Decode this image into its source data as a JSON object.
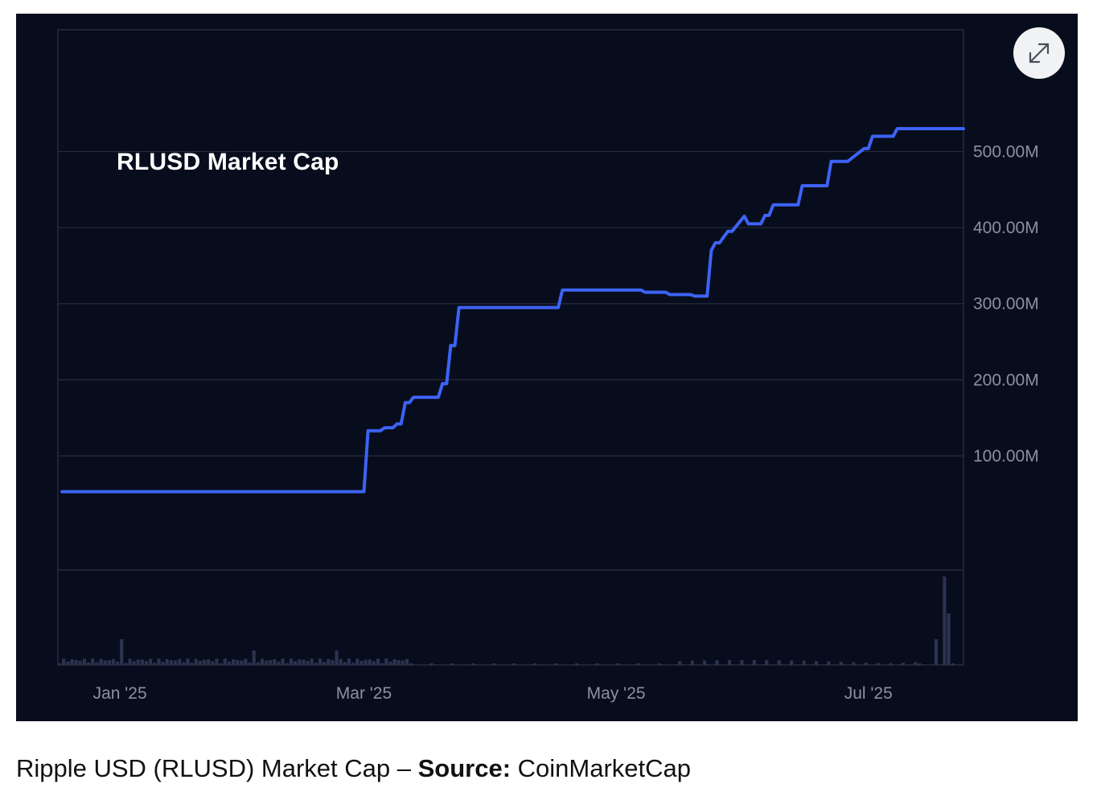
{
  "caption": {
    "text": "Ripple USD (RLUSD) Market Cap –",
    "source_label": "Source:",
    "source_name": "CoinMarketCap"
  },
  "expand_icon": "expand-arrows-icon",
  "colors": {
    "background": "#070d1c",
    "line": "#3d63f5",
    "grid": "#262c3d",
    "axis_text": "#8a90a0",
    "volume": "#2c3350"
  },
  "chart_data": {
    "type": "line",
    "title": "RLUSD Market Cap",
    "xlabel": "",
    "ylabel": "",
    "x_range": [
      "2024-12-17",
      "2025-07-24"
    ],
    "ylim": [
      -50000000,
      660000000
    ],
    "y_ticks": [
      100000000,
      200000000,
      300000000,
      400000000,
      500000000
    ],
    "y_tick_labels": [
      "100.00M",
      "200.00M",
      "300.00M",
      "400.00M",
      "500.00M"
    ],
    "x_ticks": [
      "2025-01-01",
      "2025-03-01",
      "2025-05-01",
      "2025-07-01"
    ],
    "x_tick_labels": [
      "Jan '25",
      "Mar '25",
      "May '25",
      "Jul '25"
    ],
    "grid": true,
    "series": [
      {
        "x": [
          "2024-12-18",
          "2025-03-01",
          "2025-03-02",
          "2025-03-05",
          "2025-03-06",
          "2025-03-07",
          "2025-03-08",
          "2025-03-09",
          "2025-03-10",
          "2025-03-11",
          "2025-03-12",
          "2025-03-13",
          "2025-03-14",
          "2025-03-19",
          "2025-03-20",
          "2025-03-21",
          "2025-03-22",
          "2025-03-23",
          "2025-03-24",
          "2025-03-27",
          "2025-03-28",
          "2025-03-29",
          "2025-03-30",
          "2025-04-17",
          "2025-04-18",
          "2025-05-03",
          "2025-05-07",
          "2025-05-08",
          "2025-05-13",
          "2025-05-14",
          "2025-05-19",
          "2025-05-20",
          "2025-05-21",
          "2025-05-23",
          "2025-05-24",
          "2025-05-25",
          "2025-05-26",
          "2025-05-28",
          "2025-05-29",
          "2025-06-01",
          "2025-06-02",
          "2025-06-04",
          "2025-06-05",
          "2025-06-06",
          "2025-06-07",
          "2025-06-08",
          "2025-06-09",
          "2025-06-10",
          "2025-06-11",
          "2025-06-12",
          "2025-06-14",
          "2025-06-15",
          "2025-06-16",
          "2025-06-17",
          "2025-06-20",
          "2025-06-21",
          "2025-06-22",
          "2025-06-25",
          "2025-06-26",
          "2025-06-30",
          "2025-07-01",
          "2025-07-02",
          "2025-07-03",
          "2025-07-04",
          "2025-07-05",
          "2025-07-06",
          "2025-07-07",
          "2025-07-08",
          "2025-07-12",
          "2025-07-13",
          "2025-07-14",
          "2025-07-20",
          "2025-07-24"
        ],
        "y": [
          53000000,
          53000000,
          133000000,
          133000000,
          137000000,
          137000000,
          137000000,
          142000000,
          142000000,
          170000000,
          170000000,
          177000000,
          177000000,
          177000000,
          195000000,
          195000000,
          245000000,
          245000000,
          295000000,
          295000000,
          295000000,
          295000000,
          295000000,
          295000000,
          318000000,
          318000000,
          318000000,
          315000000,
          315000000,
          312000000,
          312000000,
          310000000,
          310000000,
          310000000,
          370000000,
          380000000,
          380000000,
          395000000,
          395000000,
          415000000,
          405000000,
          405000000,
          405000000,
          416000000,
          416000000,
          430000000,
          430000000,
          430000000,
          430000000,
          430000000,
          430000000,
          455000000,
          455000000,
          455000000,
          455000000,
          455000000,
          487000000,
          487000000,
          487000000,
          504000000,
          504000000,
          520000000,
          520000000,
          520000000,
          520000000,
          520000000,
          520000000,
          530000000,
          530000000,
          530000000,
          530000000,
          530000000,
          530000000
        ]
      }
    ]
  }
}
